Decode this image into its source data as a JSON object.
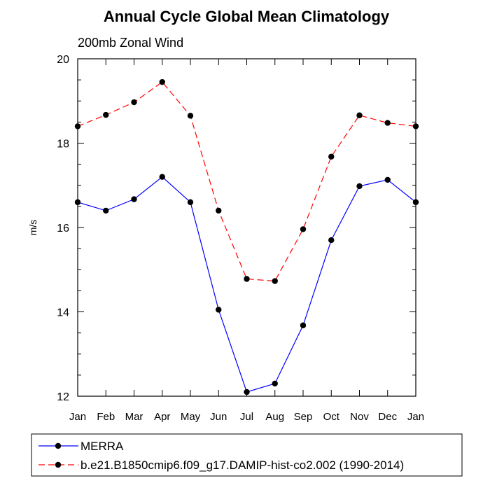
{
  "chart_data": {
    "type": "line",
    "title": "Annual Cycle Global Mean Climatology",
    "subtitle": "200mb Zonal Wind",
    "xlabel": "",
    "ylabel": "m/s",
    "categories": [
      "Jan",
      "Feb",
      "Mar",
      "Apr",
      "May",
      "Jun",
      "Jul",
      "Aug",
      "Sep",
      "Oct",
      "Nov",
      "Dec",
      "Jan"
    ],
    "ylim": [
      12,
      20
    ],
    "yticks": [
      12,
      14,
      16,
      18,
      20
    ],
    "legend_position": "bottom",
    "grid": false,
    "series": [
      {
        "name": "MERRA",
        "color": "#0000ff",
        "style": "solid",
        "marker": "filled-circle",
        "values": [
          16.6,
          16.4,
          16.67,
          17.2,
          16.6,
          14.05,
          12.1,
          12.3,
          13.68,
          15.7,
          16.98,
          17.13,
          16.6
        ]
      },
      {
        "name": "b.e21.B1850cmip6.f09_g17.DAMIP-hist-co2.002 (1990-2014)",
        "color": "#ff0000",
        "style": "dashed",
        "marker": "filled-circle",
        "values": [
          18.4,
          18.67,
          18.97,
          19.45,
          18.65,
          16.4,
          14.78,
          14.73,
          15.96,
          17.68,
          18.66,
          18.48,
          18.4
        ]
      }
    ]
  }
}
